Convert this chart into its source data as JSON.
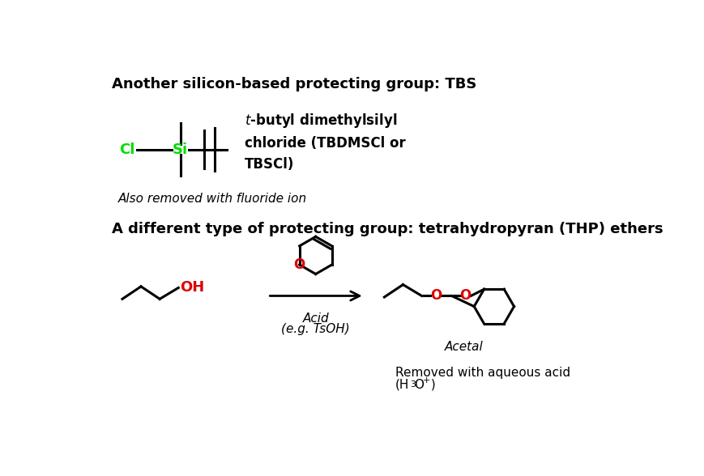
{
  "title1": "Another silicon-based protecting group: TBS",
  "title2": "A different type of protecting group: tetrahydropyran (THP) ethers",
  "fluoride_note": "Also removed with fluoride ion",
  "acid_label1": "Acid",
  "acid_label2": "(e.g. TsOH)",
  "acetal_label": "Acetal",
  "cl_color": "#00dd00",
  "si_color": "#00dd00",
  "o_color": "#dd0000",
  "bond_color": "#000000",
  "bg_color": "#ffffff",
  "text_color": "#000000"
}
